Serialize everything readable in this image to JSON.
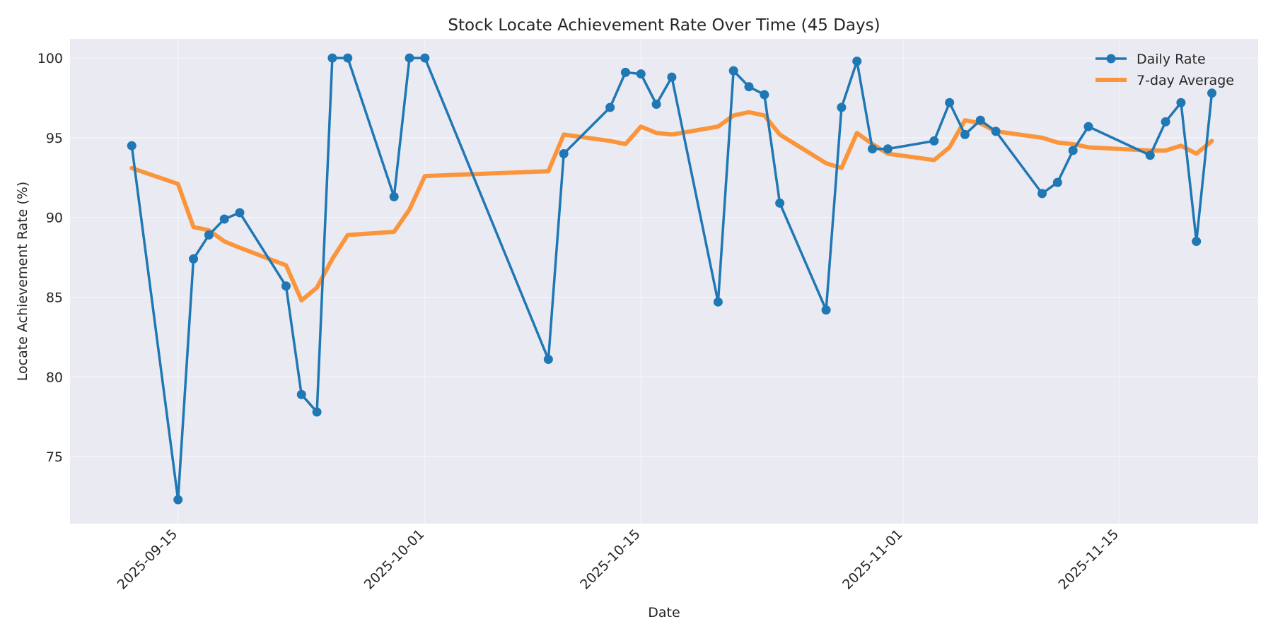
{
  "chart_data": {
    "type": "line",
    "title": "Stock Locate Achievement Rate Over Time (45 Days)",
    "xlabel": "Date",
    "ylabel": "Locate Achievement Rate (%)",
    "x_range": [
      "2025-09-08",
      "2025-11-24"
    ],
    "ylim": [
      70.8,
      101.2
    ],
    "y_ticks": [
      75,
      80,
      85,
      90,
      95,
      100
    ],
    "x_ticks": [
      "2025-09-15",
      "2025-10-01",
      "2025-10-15",
      "2025-11-01",
      "2025-11-15"
    ],
    "grid": true,
    "legend_position": "top-right",
    "colors": {
      "plot_bg": "#eaeaf2",
      "grid": "#f5f5f9",
      "daily": "#1f77b4",
      "avg": "#ff7f0e"
    },
    "x": [
      "2025-09-12",
      "2025-09-15",
      "2025-09-16",
      "2025-09-17",
      "2025-09-18",
      "2025-09-19",
      "2025-09-22",
      "2025-09-23",
      "2025-09-24",
      "2025-09-25",
      "2025-09-26",
      "2025-09-29",
      "2025-09-30",
      "2025-10-01",
      "2025-10-09",
      "2025-10-10",
      "2025-10-13",
      "2025-10-14",
      "2025-10-15",
      "2025-10-16",
      "2025-10-17",
      "2025-10-20",
      "2025-10-21",
      "2025-10-22",
      "2025-10-23",
      "2025-10-24",
      "2025-10-27",
      "2025-10-28",
      "2025-10-29",
      "2025-10-30",
      "2025-10-31",
      "2025-11-03",
      "2025-11-04",
      "2025-11-05",
      "2025-11-06",
      "2025-11-07",
      "2025-11-10",
      "2025-11-11",
      "2025-11-12",
      "2025-11-13",
      "2025-11-17",
      "2025-11-18",
      "2025-11-19",
      "2025-11-20",
      "2025-11-21"
    ],
    "series": [
      {
        "name": "Daily Rate",
        "values": [
          94.5,
          72.3,
          87.4,
          88.9,
          89.9,
          90.3,
          85.7,
          78.9,
          77.8,
          100.0,
          100.0,
          91.3,
          100.0,
          100.0,
          81.1,
          94.0,
          96.9,
          99.1,
          99.0,
          97.1,
          98.8,
          84.7,
          99.2,
          98.2,
          97.7,
          90.9,
          84.2,
          96.9,
          99.8,
          94.3,
          94.3,
          94.8,
          97.2,
          95.2,
          96.1,
          95.4,
          91.5,
          92.2,
          94.2,
          95.7,
          93.9,
          96.0,
          97.2,
          88.5,
          97.8
        ]
      },
      {
        "name": "7-day Average",
        "values": [
          93.1,
          92.1,
          89.4,
          89.2,
          88.5,
          88.1,
          87.0,
          84.8,
          85.6,
          87.4,
          88.9,
          89.1,
          90.5,
          92.6,
          92.9,
          95.2,
          94.8,
          94.6,
          95.7,
          95.3,
          95.2,
          95.7,
          96.4,
          96.6,
          96.4,
          95.2,
          93.4,
          93.1,
          95.3,
          94.6,
          94.0,
          93.6,
          94.4,
          96.1,
          95.9,
          95.4,
          95.0,
          94.7,
          94.6,
          94.4,
          94.2,
          94.2,
          94.5,
          94.0,
          94.8
        ]
      }
    ]
  }
}
